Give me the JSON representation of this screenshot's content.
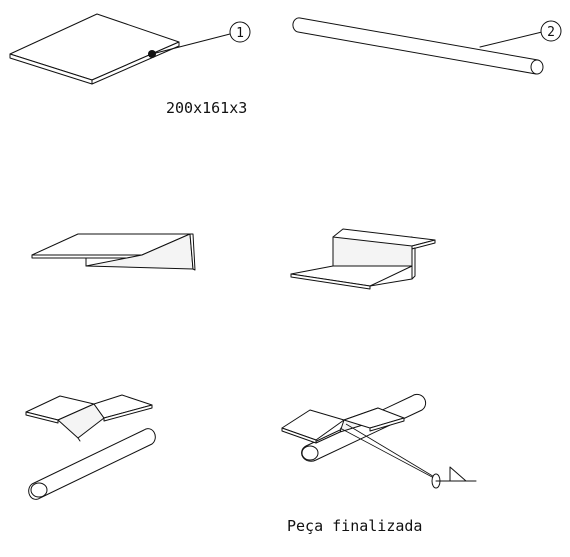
{
  "labels": {
    "dimension": "200x161x3",
    "final_part": "Peça finalizada"
  },
  "callouts": [
    {
      "number": "1"
    },
    {
      "number": "2"
    }
  ],
  "colors": {
    "ink": "#111111",
    "paper": "#ffffff"
  }
}
